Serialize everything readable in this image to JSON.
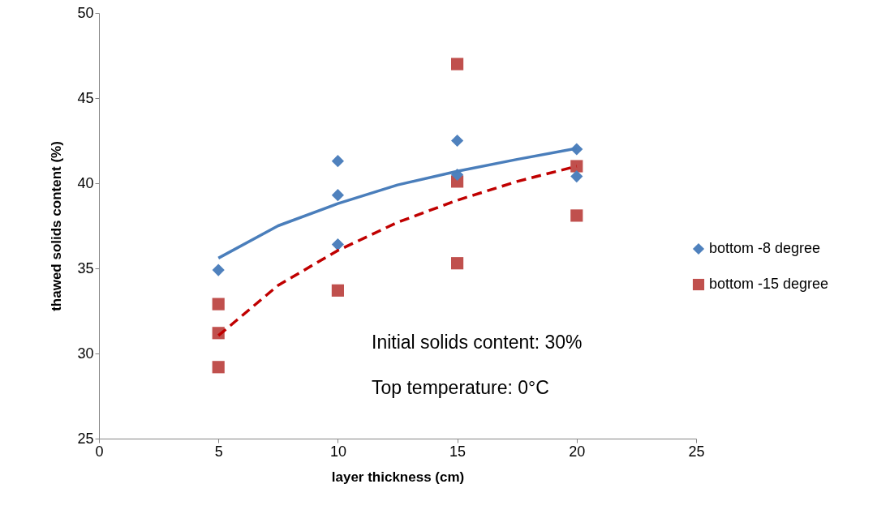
{
  "chart_data": {
    "type": "scatter",
    "xlabel": "layer thickness (cm)",
    "ylabel": "thawed solids content (%)",
    "xlim": [
      0,
      25
    ],
    "xticks": [
      0,
      5,
      10,
      15,
      20,
      25
    ],
    "ylim": [
      25,
      50
    ],
    "yticks": [
      25,
      30,
      35,
      40,
      45,
      50
    ],
    "grid": false,
    "legend": "right",
    "series": [
      {
        "name": "bottom -8 degree",
        "type": "scatter",
        "marker": "diamond",
        "color": "#4f81bd",
        "x": [
          5,
          10,
          10,
          10,
          15,
          15,
          20,
          20
        ],
        "values": [
          34.9,
          41.3,
          39.3,
          36.4,
          42.5,
          40.5,
          42.0,
          40.4
        ]
      },
      {
        "name": "bottom -15 degree",
        "type": "scatter",
        "marker": "square",
        "color": "#c0504d",
        "x": [
          5,
          5,
          5,
          10,
          15,
          15,
          15,
          20,
          20
        ],
        "values": [
          32.9,
          31.2,
          29.2,
          33.7,
          47.0,
          40.1,
          35.3,
          41.0,
          38.1
        ]
      },
      {
        "type": "line",
        "line_style": "solid",
        "color": "#4a7ebb",
        "x": [
          5,
          7.5,
          10,
          12.5,
          15,
          17.5,
          20
        ],
        "values": [
          35.6,
          37.5,
          38.8,
          39.9,
          40.7,
          41.4,
          42.05
        ]
      },
      {
        "type": "line",
        "line_style": "dashed",
        "color": "#c00000",
        "x": [
          5,
          7.5,
          10,
          12.5,
          15,
          17.5,
          20
        ],
        "values": [
          31.05,
          34.0,
          36.05,
          37.7,
          39.0,
          40.1,
          41.0
        ]
      }
    ],
    "annotations": [
      "Initial  solids  content:  30%",
      "Top temperature: 0°C"
    ]
  }
}
